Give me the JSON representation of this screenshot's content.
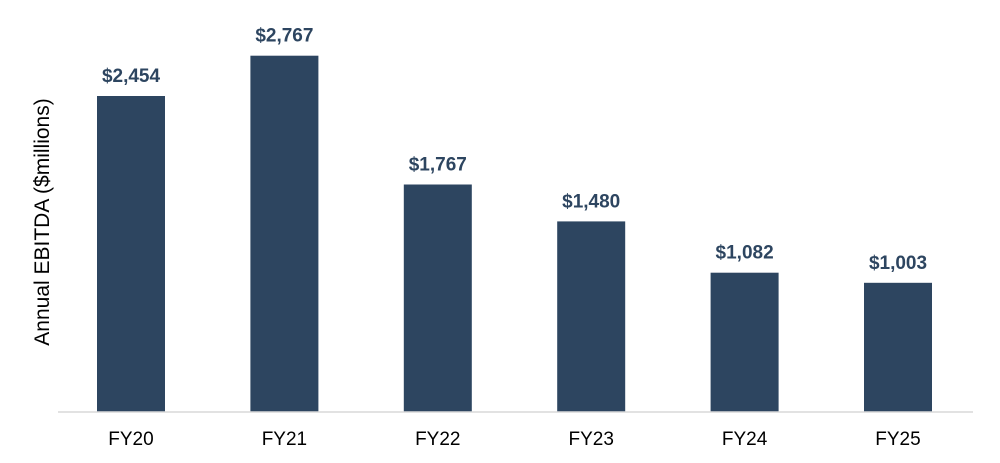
{
  "chart_data": {
    "type": "bar",
    "title": "",
    "xlabel": "",
    "ylabel": "Annual EBITDA ($millions)",
    "categories": [
      "FY20",
      "FY21",
      "FY22",
      "FY23",
      "FY24",
      "FY25"
    ],
    "values": [
      2454,
      2767,
      1767,
      1480,
      1082,
      1003
    ],
    "value_labels": [
      "$2,454",
      "$2,767",
      "$1,767",
      "$1,480",
      "$1,082",
      "$1,003"
    ],
    "ylim": [
      0,
      3000
    ],
    "grid": false,
    "legend": "none",
    "bar_color": "#2d4560",
    "value_label_color": "#2d4560",
    "axis_color": "#d9d9d9"
  }
}
